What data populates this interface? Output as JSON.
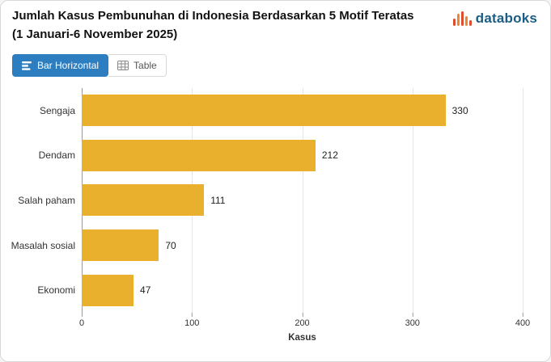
{
  "header": {
    "title": "Jumlah Kasus Pembunuhan di Indonesia Berdasarkan 5 Motif Teratas (1 Januari-6 November 2025)",
    "brand": "databoks"
  },
  "toolbar": {
    "bar_horizontal_label": "Bar Horizontal",
    "table_label": "Table"
  },
  "chart_data": {
    "type": "bar",
    "orientation": "horizontal",
    "title": "Jumlah Kasus Pembunuhan di Indonesia Berdasarkan 5 Motif Teratas (1 Januari-6 November 2025)",
    "categories": [
      "Sengaja",
      "Dendam",
      "Salah paham",
      "Masalah sosial",
      "Ekonomi"
    ],
    "values": [
      330,
      212,
      111,
      70,
      47
    ],
    "xlabel": "Kasus",
    "xlim": [
      0,
      400
    ],
    "xticks": [
      0,
      100,
      200,
      300,
      400
    ],
    "bar_color": "#E9B02D",
    "grid": true,
    "legend": "none",
    "colors": {
      "accent_blue": "#2D7EC0",
      "axis_line": "#9A9A9A",
      "gridline": "#E6E6E6",
      "brand_text": "#1C5D86",
      "brand_icon_red": "#DE4E2B",
      "brand_icon_orange": "#F08434"
    }
  }
}
